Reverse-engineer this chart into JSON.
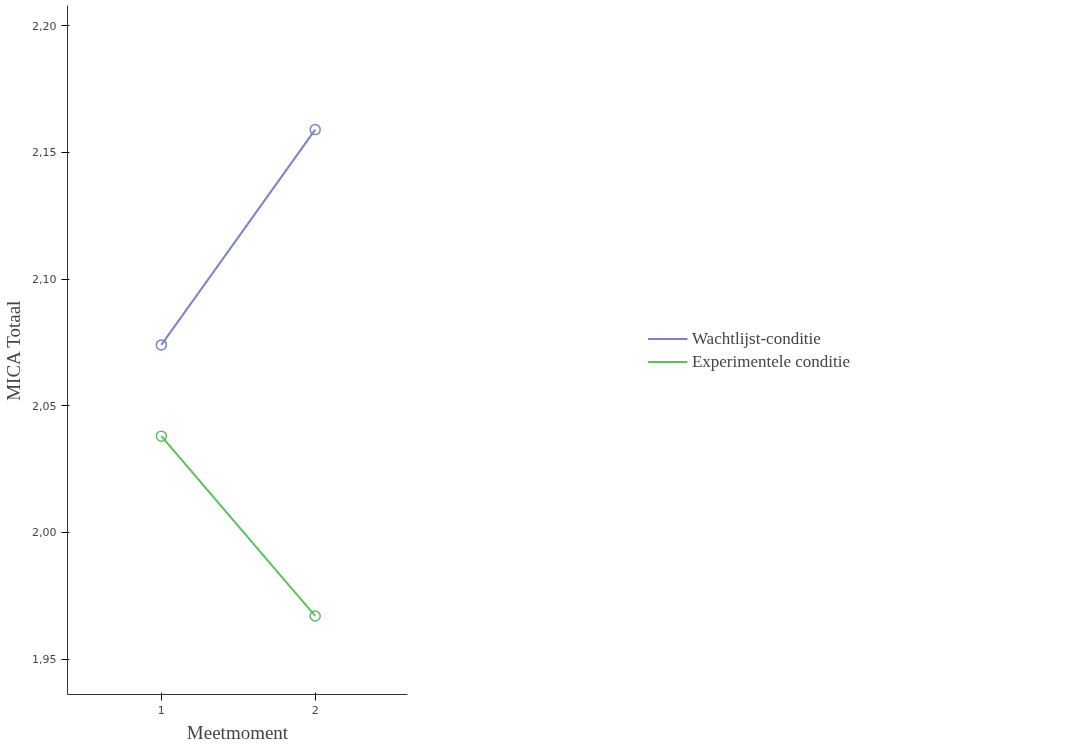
{
  "chart_data": {
    "type": "line",
    "xlabel": "Meetmoment",
    "ylabel": "MICA Totaal",
    "categories": [
      "1",
      "2"
    ],
    "series": [
      {
        "name": "Wachtlijst-conditie",
        "color": "#7b83c8",
        "values": [
          2.074,
          2.159
        ]
      },
      {
        "name": "Experimentele conditie",
        "color": "#5cbf5c",
        "values": [
          2.038,
          1.967
        ]
      }
    ],
    "ylim": [
      1.936,
      2.208
    ],
    "yticks": [
      {
        "value": 1.95,
        "label": "1,95"
      },
      {
        "value": 2.0,
        "label": "2,00"
      },
      {
        "value": 2.05,
        "label": "2,05"
      },
      {
        "value": 2.1,
        "label": "2,10"
      },
      {
        "value": 2.15,
        "label": "2,15"
      },
      {
        "value": 2.2,
        "label": "2,20"
      }
    ],
    "marker": "circle",
    "line_style": "solid",
    "grid": false,
    "legend": "right"
  }
}
